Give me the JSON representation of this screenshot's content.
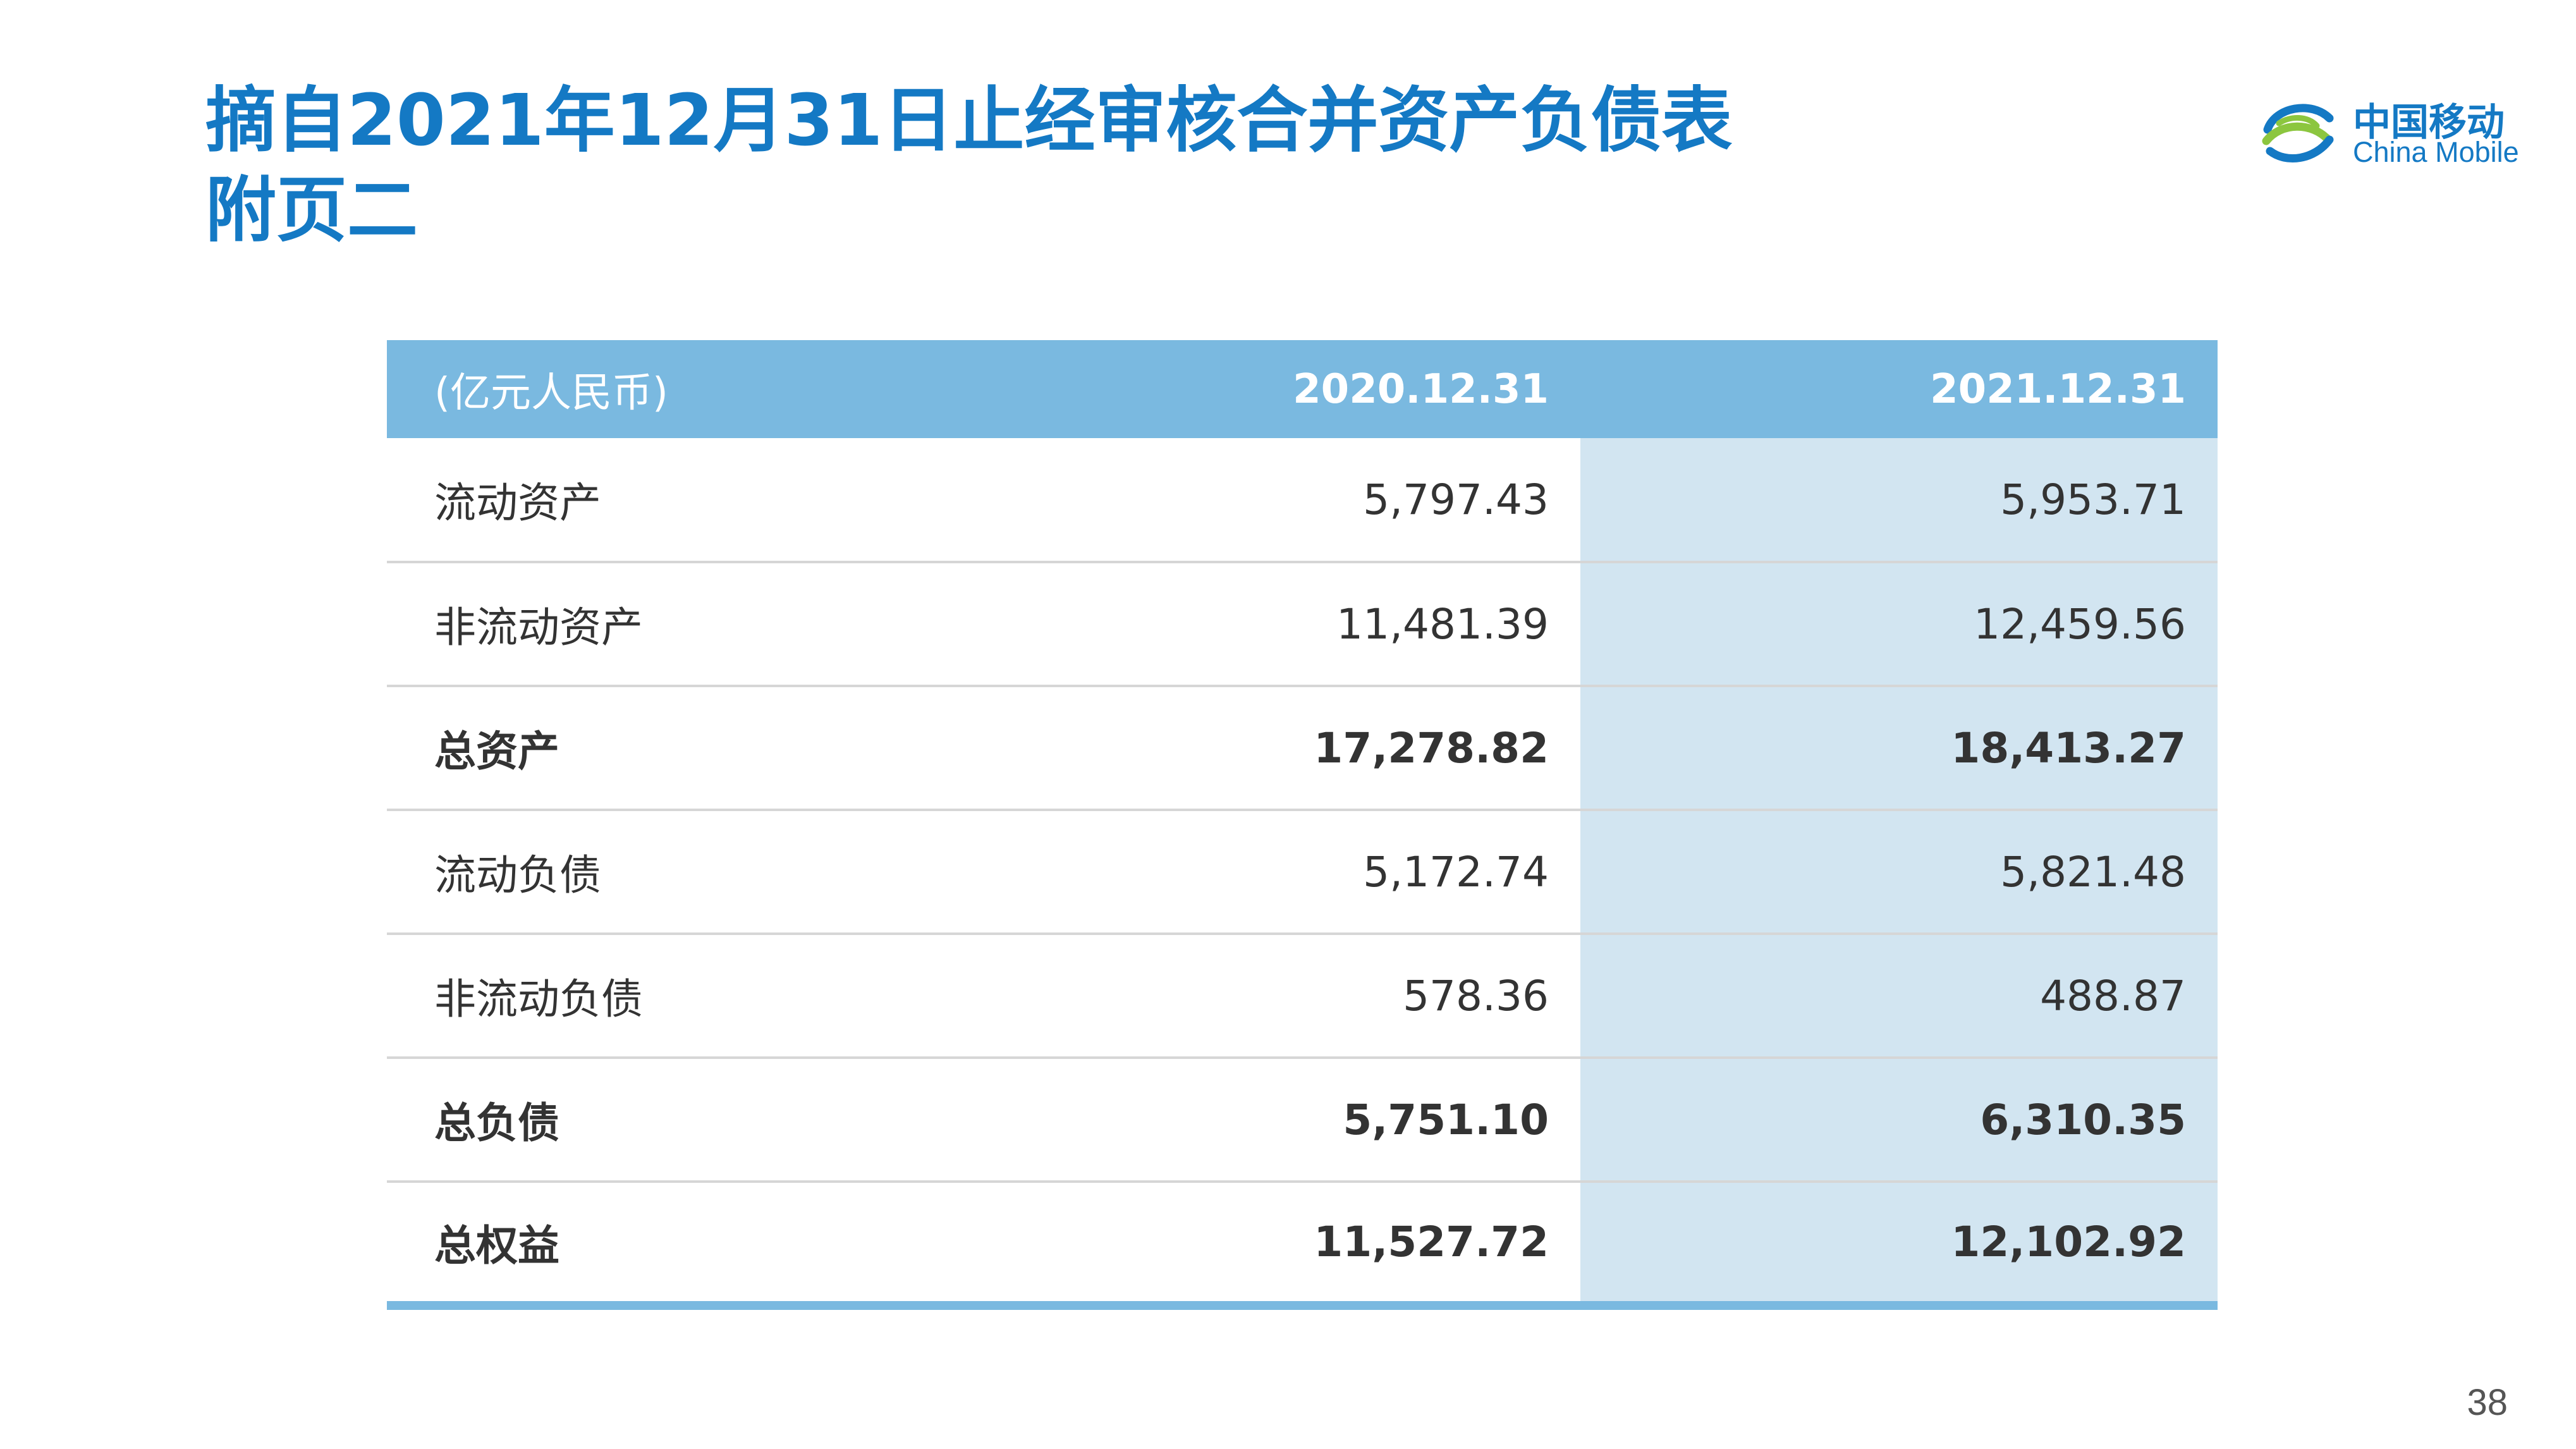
{
  "title": {
    "line1": "摘自2021年12月31日止经审核合并资产负债表",
    "line2": "附页二"
  },
  "logo": {
    "name_cn": "中国移动",
    "name_en": "China Mobile",
    "brand_color": "#1479c4"
  },
  "table": {
    "header": {
      "unit": "(亿元人民币)",
      "col_2020": "2020.12.31",
      "col_2021": "2021.12.31"
    },
    "rows": [
      {
        "label": "流动资产",
        "v2020": "5,797.43",
        "v2021": "5,953.71",
        "bold": false
      },
      {
        "label": "非流动资产",
        "v2020": "11,481.39",
        "v2021": "12,459.56",
        "bold": false
      },
      {
        "label": "总资产",
        "v2020": "17,278.82",
        "v2021": "18,413.27",
        "bold": true
      },
      {
        "label": "流动负债",
        "v2020": "5,172.74",
        "v2021": "5,821.48",
        "bold": false
      },
      {
        "label": "非流动负债",
        "v2020": "578.36",
        "v2021": "488.87",
        "bold": false
      },
      {
        "label": "总负债",
        "v2020": "5,751.10",
        "v2021": "6,310.35",
        "bold": true
      },
      {
        "label": "总权益",
        "v2020": "11,527.72",
        "v2021": "12,102.92",
        "bold": true
      }
    ],
    "colors": {
      "header_bg": "#7ab9e0",
      "highlight_col_bg": "#d2e5f1"
    }
  },
  "page_number": "38"
}
